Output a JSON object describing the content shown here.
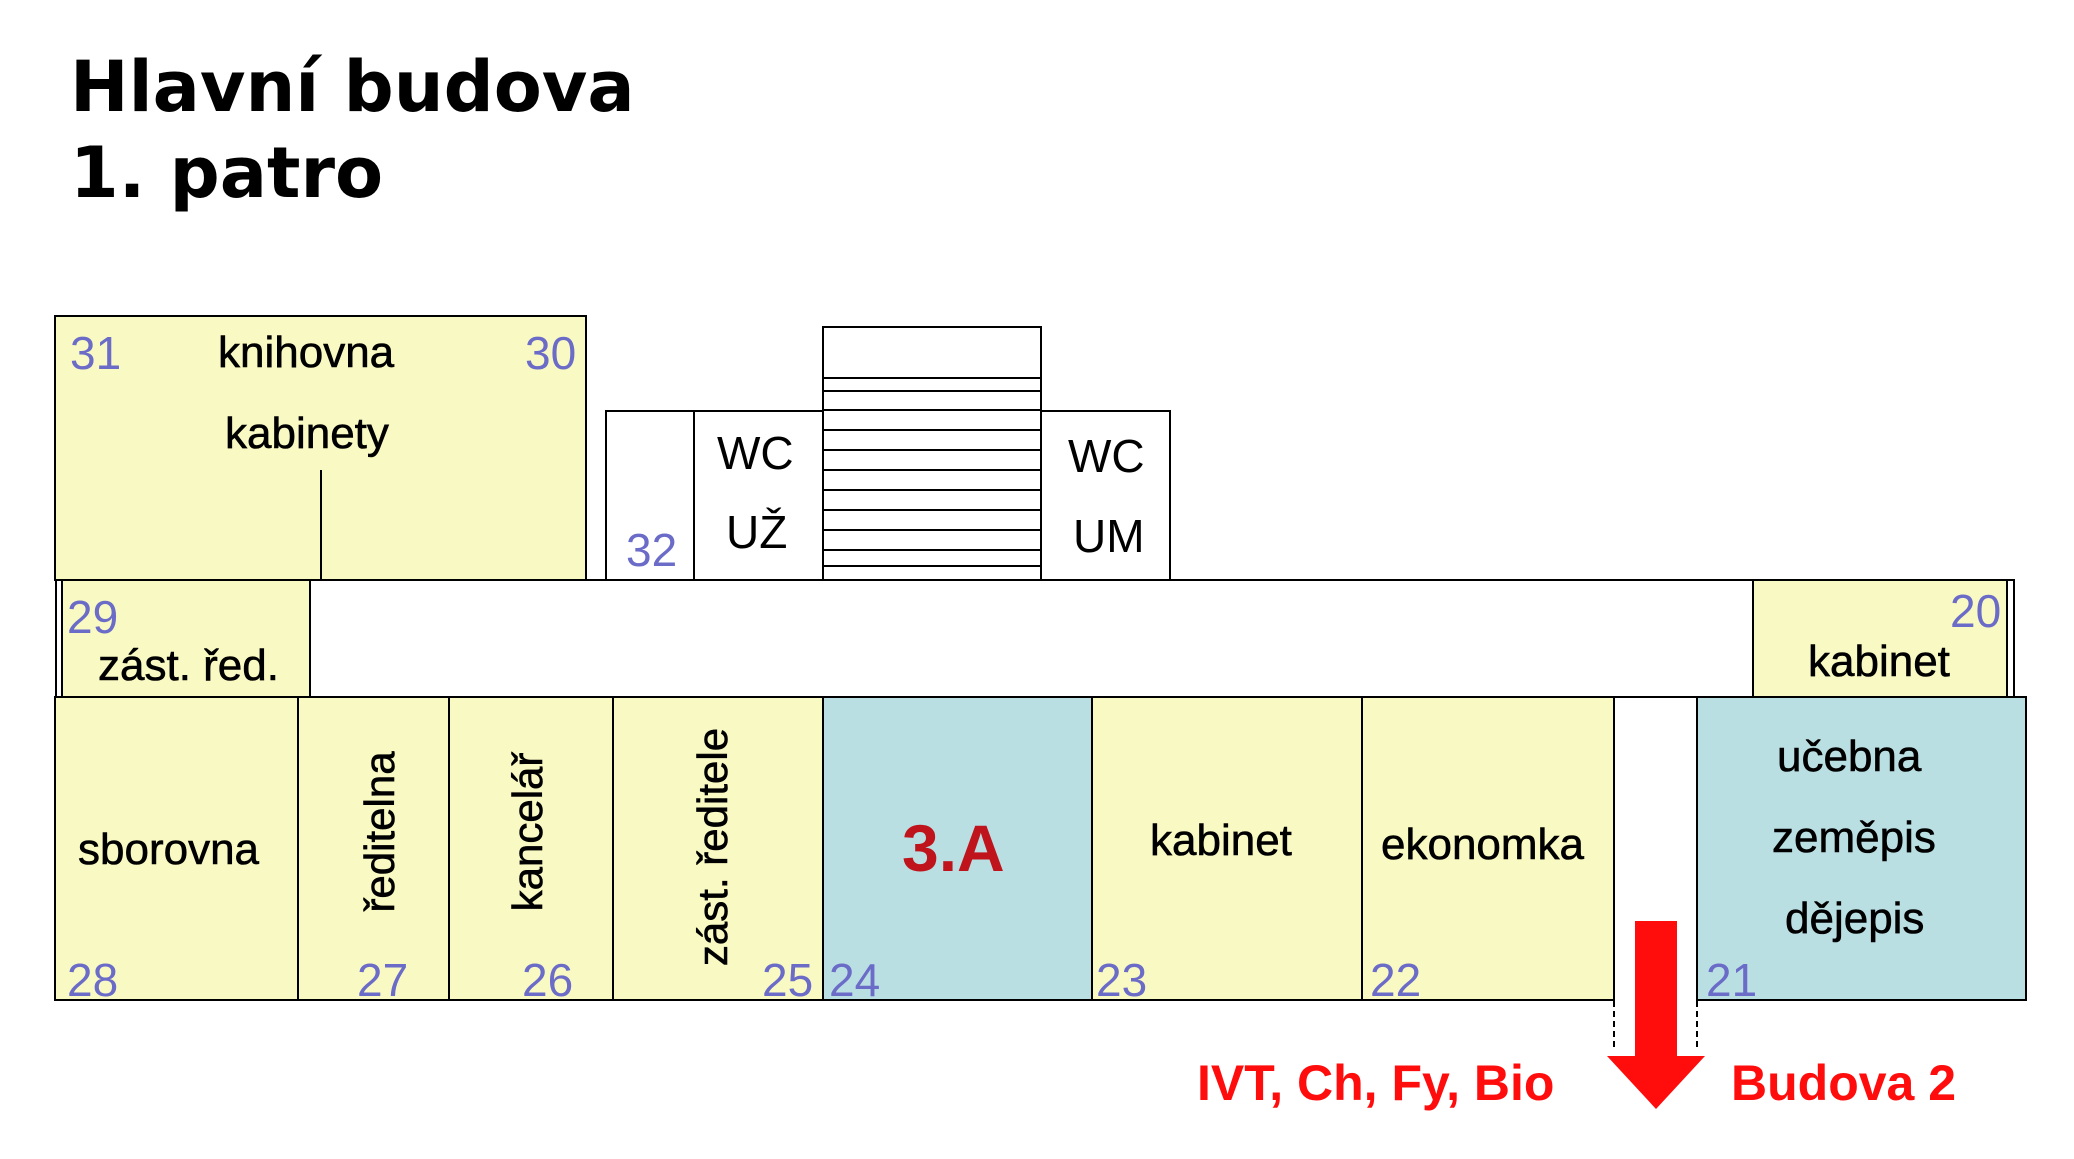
{
  "title": {
    "line1": "Hlavní budova",
    "line2": "1. patro"
  },
  "rooms": {
    "r31_30": {
      "num_left": "31",
      "num_right": "30",
      "label1": "knihovna",
      "label2": "kabinety"
    },
    "r32": {
      "num": "32"
    },
    "wc_women": {
      "label1": "WC",
      "label2": "UŽ"
    },
    "wc_men": {
      "label1": "WC",
      "label2": "UM"
    },
    "r29": {
      "num": "29",
      "label": "zást. řed."
    },
    "r20": {
      "num": "20",
      "label": "kabinet"
    },
    "r28": {
      "num": "28",
      "label": "sborovna"
    },
    "r27": {
      "num": "27",
      "label": "ředitelna"
    },
    "r26": {
      "num": "26",
      "label": "kancelář"
    },
    "r25": {
      "num": "25",
      "label": "zást. ředitele"
    },
    "r24": {
      "num": "24",
      "label": "3.A"
    },
    "r23": {
      "num": "23",
      "label": "kabinet"
    },
    "r22": {
      "num": "22",
      "label": "ekonomka"
    },
    "r21": {
      "num": "21",
      "label1": "učebna",
      "label2": "zeměpis",
      "label3": "dějepis"
    }
  },
  "exit": {
    "left_label": "IVT, Ch, Fy, Bio",
    "right_label": "Budova 2",
    "arrow_icon": "arrow-down-icon"
  },
  "colors": {
    "room_fill": "#f9f9c3",
    "highlight_fill": "#b9dfe3",
    "room_number": "#6b6bc8",
    "accent_red": "#ff0d0d",
    "class_label": "#c0141c"
  }
}
